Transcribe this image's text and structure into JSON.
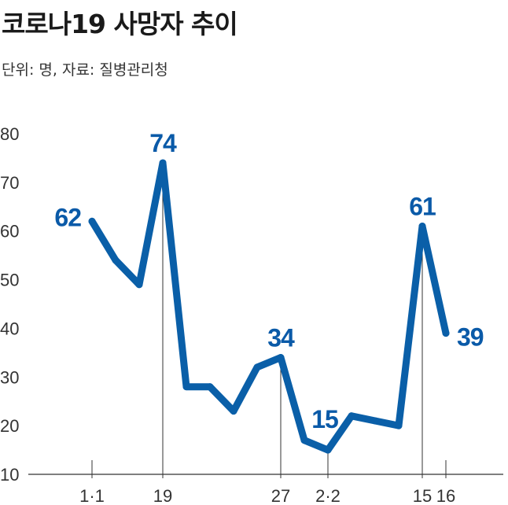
{
  "header": {
    "title": "코로나19 사망자 추이",
    "subtitle": "단위: 명, 자료: 질병관리청"
  },
  "colors": {
    "line": "#0a5fa8",
    "axis": "#333333",
    "label": "#0a5aa8"
  },
  "chart_data": {
    "type": "line",
    "title": "코로나19 사망자 추이",
    "subtitle": "단위: 명, 자료: 질병관리청",
    "ylim": [
      10,
      80
    ],
    "yticks": [
      80,
      70,
      60,
      50,
      40,
      30,
      20,
      10
    ],
    "x_tick_labels": [
      {
        "label": "1·1",
        "index": 0
      },
      {
        "label": "19",
        "index": 3
      },
      {
        "label": "27",
        "index": 8
      },
      {
        "label": "2·2",
        "index": 10
      },
      {
        "label": "15",
        "index": 14
      },
      {
        "label": "16",
        "index": 15
      }
    ],
    "series": [
      {
        "values": [
          62,
          54,
          49,
          74,
          28,
          28,
          23,
          32,
          34,
          17,
          15,
          22,
          21,
          20,
          61,
          39
        ]
      }
    ],
    "data_labels": [
      {
        "index": 0,
        "text": "62"
      },
      {
        "index": 3,
        "text": "74"
      },
      {
        "index": 8,
        "text": "34"
      },
      {
        "index": 10,
        "text": "15"
      },
      {
        "index": 14,
        "text": "61"
      },
      {
        "index": 15,
        "text": "39"
      }
    ],
    "grid": false
  }
}
